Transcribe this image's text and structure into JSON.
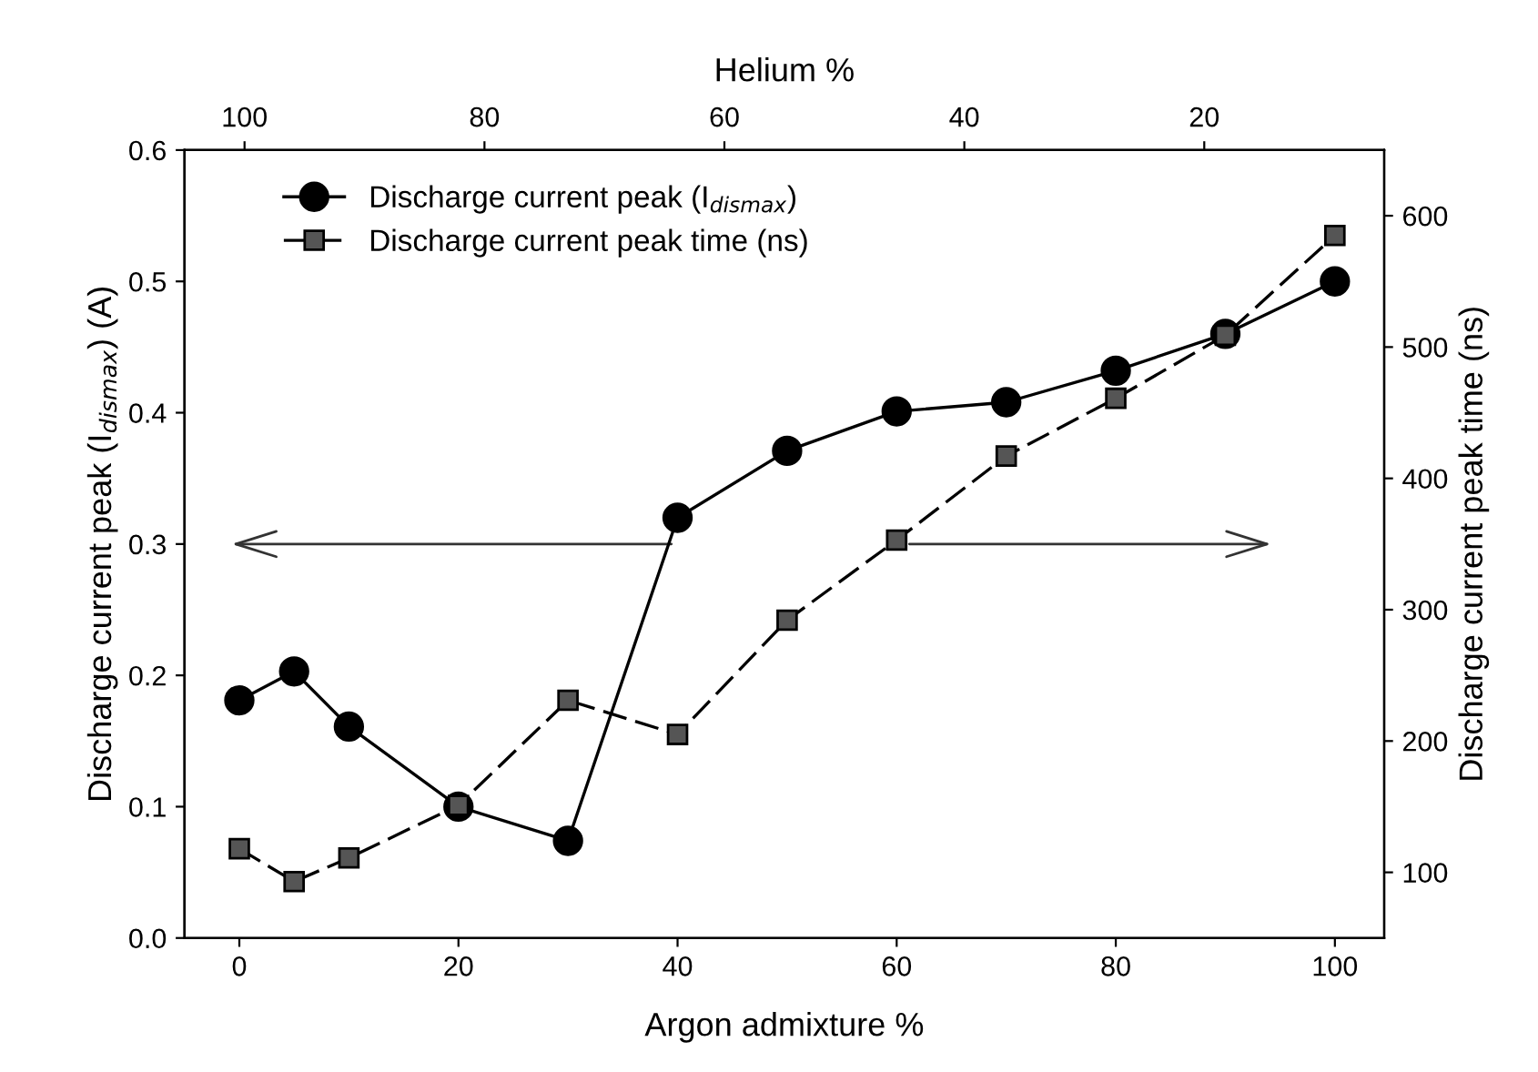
{
  "chart_data": {
    "type": "line",
    "xlabel": "Argon admixture %",
    "ylabel": "Discharge current peak (I$_{dismax}$) (A)",
    "y2label": "Discharge current peak time (ns)",
    "x2label": "Helium %",
    "x": [
      0,
      5,
      10,
      20,
      30,
      40,
      50,
      60,
      70,
      80,
      90,
      100
    ],
    "series": [
      {
        "name": "Discharge current peak (I$_{dismax}$)",
        "color": "#000000",
        "marker": "circle",
        "line_style": "solid",
        "values": [
          0.181,
          0.203,
          0.161,
          0.1,
          0.074,
          0.32,
          0.371,
          0.401,
          0.408,
          0.432,
          0.46,
          0.5
        ]
      },
      {
        "name": "Discharge current peak time (ns)",
        "color": "#555555",
        "marker": "square",
        "line_style": "dashed",
        "axis": "y2",
        "values": [
          118,
          93,
          111,
          151,
          231,
          205,
          292,
          353,
          417,
          461,
          509,
          585
        ]
      }
    ],
    "xlim": [
      -5,
      104.5
    ],
    "xticks": [
      0,
      20,
      40,
      60,
      80,
      100
    ],
    "x2lim": [
      105,
      5
    ],
    "x2ticks": [
      100,
      80,
      60,
      40,
      20
    ],
    "ylim": [
      0,
      0.6
    ],
    "yticks": [
      {
        "value": 0,
        "label": "0.0"
      },
      0.1,
      0.2,
      0.3,
      0.4,
      0.5,
      0.6
    ],
    "y2lim": [
      50,
      650
    ],
    "y2ticks": [
      100,
      200,
      300,
      400,
      500,
      600
    ],
    "grid": false,
    "legend": "top left"
  }
}
